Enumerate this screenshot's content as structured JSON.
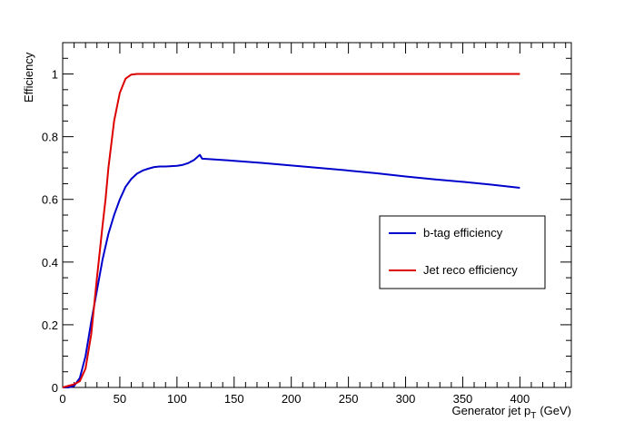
{
  "chart_data": {
    "type": "line",
    "title": "",
    "xlabel": "Generator jet p",
    "xlabel_sub": "T",
    "xlabel_unit": "(GeV)",
    "ylabel": "Efficiency",
    "xlim": [
      0,
      445
    ],
    "ylim": [
      0,
      1.1
    ],
    "x_ticks": [
      0,
      50,
      100,
      150,
      200,
      250,
      300,
      350,
      400
    ],
    "x_tick_labels": [
      "0",
      "50",
      "100",
      "150",
      "200",
      "250",
      "300",
      "350",
      "400"
    ],
    "y_ticks": [
      0,
      0.2,
      0.4,
      0.6,
      0.8,
      1
    ],
    "y_tick_labels": [
      "0",
      "0.2",
      "0.4",
      "0.6",
      "0.8",
      "1"
    ],
    "grid": false,
    "legend_position": "center-right",
    "series": [
      {
        "name": "b-tag efficiency",
        "color": "#0000cc",
        "points": [
          [
            0,
            0
          ],
          [
            5,
            0
          ],
          [
            10,
            0.005
          ],
          [
            15,
            0.03
          ],
          [
            20,
            0.1
          ],
          [
            25,
            0.21
          ],
          [
            30,
            0.31
          ],
          [
            35,
            0.41
          ],
          [
            40,
            0.49
          ],
          [
            45,
            0.55
          ],
          [
            50,
            0.6
          ],
          [
            55,
            0.64
          ],
          [
            60,
            0.665
          ],
          [
            65,
            0.682
          ],
          [
            70,
            0.692
          ],
          [
            75,
            0.698
          ],
          [
            80,
            0.703
          ],
          [
            85,
            0.705
          ],
          [
            90,
            0.705
          ],
          [
            95,
            0.706
          ],
          [
            100,
            0.707
          ],
          [
            105,
            0.71
          ],
          [
            110,
            0.716
          ],
          [
            115,
            0.726
          ],
          [
            120,
            0.742
          ],
          [
            122,
            0.73
          ],
          [
            130,
            0.728
          ],
          [
            150,
            0.723
          ],
          [
            175,
            0.716
          ],
          [
            200,
            0.708
          ],
          [
            225,
            0.7
          ],
          [
            250,
            0.692
          ],
          [
            275,
            0.683
          ],
          [
            300,
            0.673
          ],
          [
            325,
            0.664
          ],
          [
            350,
            0.656
          ],
          [
            375,
            0.647
          ],
          [
            400,
            0.637
          ]
        ]
      },
      {
        "name": "Jet reco efficiency",
        "color": "#dd0000",
        "points": [
          [
            0,
            0
          ],
          [
            5,
            0.005
          ],
          [
            10,
            0.01
          ],
          [
            15,
            0.02
          ],
          [
            20,
            0.06
          ],
          [
            25,
            0.17
          ],
          [
            30,
            0.35
          ],
          [
            35,
            0.52
          ],
          [
            37.5,
            0.6
          ],
          [
            40,
            0.7
          ],
          [
            45,
            0.85
          ],
          [
            50,
            0.94
          ],
          [
            55,
            0.985
          ],
          [
            60,
            0.998
          ],
          [
            65,
            1
          ],
          [
            70,
            1
          ],
          [
            100,
            1
          ],
          [
            150,
            1
          ],
          [
            200,
            1
          ],
          [
            250,
            1
          ],
          [
            300,
            1
          ],
          [
            350,
            1
          ],
          [
            400,
            1
          ]
        ]
      }
    ]
  }
}
